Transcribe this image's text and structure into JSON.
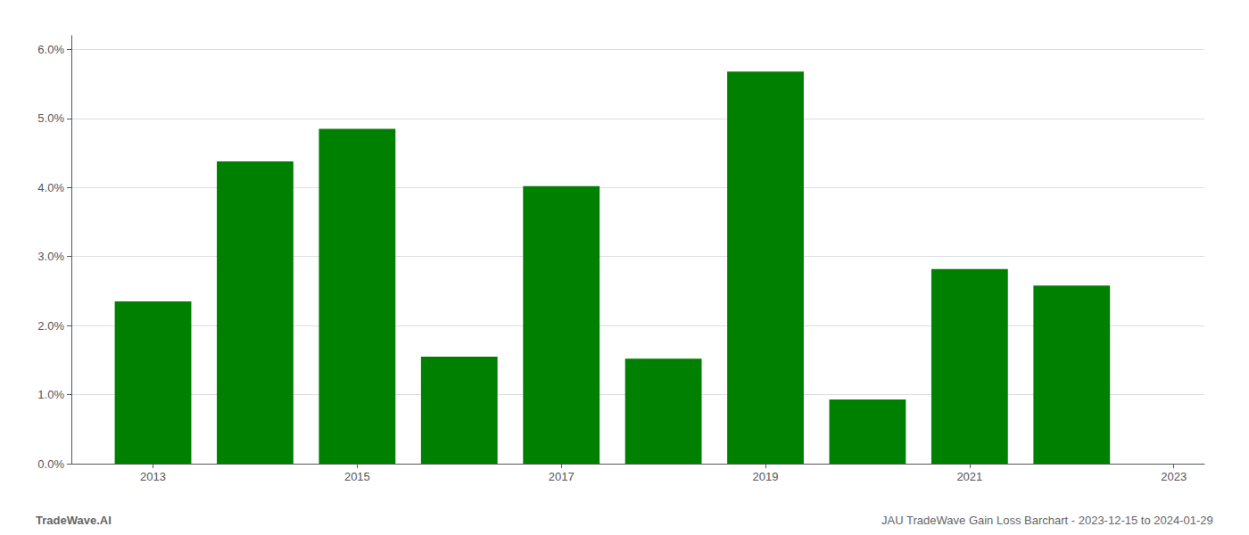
{
  "chart_data": {
    "type": "bar",
    "x": [
      2013,
      2014,
      2015,
      2016,
      2017,
      2018,
      2019,
      2020,
      2021,
      2022
    ],
    "values": [
      0.0235,
      0.0438,
      0.0485,
      0.0155,
      0.0402,
      0.0152,
      0.0568,
      0.0093,
      0.0282,
      0.0258
    ],
    "color": "#008000",
    "xlim": [
      2012.2,
      2023.3
    ],
    "xticks": [
      2013,
      2015,
      2017,
      2019,
      2021,
      2023
    ],
    "ylim": [
      0,
      0.062
    ],
    "yticks": [
      {
        "value": 0,
        "label": "0.0%"
      },
      {
        "value": 0.01,
        "label": "1.0%"
      },
      {
        "value": 0.02,
        "label": "2.0%"
      },
      {
        "value": 0.03,
        "label": "3.0%"
      },
      {
        "value": 0.04,
        "label": "4.0%"
      },
      {
        "value": 0.05,
        "label": "5.0%"
      },
      {
        "value": 0.06,
        "label": "6.0%"
      }
    ],
    "grid": true,
    "annotations": [
      "TradeWave.AI",
      "JAU TradeWave Gain Loss Barchart - 2023-12-15 to 2024-01-29"
    ]
  }
}
